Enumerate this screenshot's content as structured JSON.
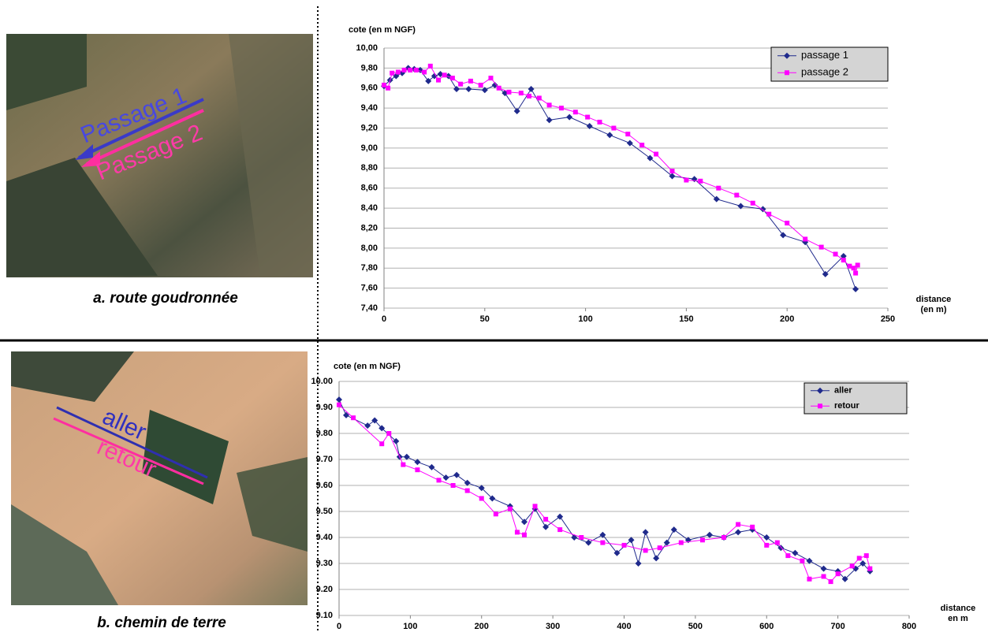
{
  "photos": [
    {
      "caption": "a. route goudronnée",
      "labels": [
        "Passage 1",
        "Passage 2"
      ]
    },
    {
      "caption": "b. chemin de terre",
      "labels": [
        "aller",
        "retour"
      ]
    }
  ],
  "chart_data": [
    {
      "type": "line",
      "y_label": "cote (en m NGF)",
      "x_label": [
        "distance",
        "(en m)"
      ],
      "xlim": [
        0,
        250
      ],
      "xticks": [
        0,
        50,
        100,
        150,
        200,
        250
      ],
      "ylim": [
        7.4,
        10
      ],
      "yticks": [
        {
          "value": 7.4,
          "label": "7,40"
        },
        {
          "value": 7.6,
          "label": "7,60"
        },
        {
          "value": 7.8,
          "label": "7,80"
        },
        {
          "value": 8,
          "label": "8,00"
        },
        {
          "value": 8.2,
          "label": "8,20"
        },
        {
          "value": 8.4,
          "label": "8,40"
        },
        {
          "value": 8.6,
          "label": "8,60"
        },
        {
          "value": 8.8,
          "label": "8,80"
        },
        {
          "value": 9,
          "label": "9,00"
        },
        {
          "value": 9.2,
          "label": "9,20"
        },
        {
          "value": 9.4,
          "label": "9,40"
        },
        {
          "value": 9.6,
          "label": "9,60"
        },
        {
          "value": 9.8,
          "label": "9,80"
        },
        {
          "value": 10,
          "label": "10,00"
        }
      ],
      "grid": true,
      "legend": "top-right",
      "series": [
        {
          "name": "passage 1",
          "color": "#1f2a8c",
          "marker": "diamond",
          "x": [
            0,
            3,
            6,
            9,
            12,
            15,
            18,
            22,
            25,
            28,
            32,
            36,
            42,
            50,
            55,
            60,
            66,
            73,
            82,
            92,
            102,
            112,
            122,
            132,
            143,
            154,
            165,
            177,
            188,
            198,
            209,
            219,
            228,
            234
          ],
          "values": [
            9.62,
            9.68,
            9.72,
            9.75,
            9.8,
            9.79,
            9.78,
            9.67,
            9.72,
            9.74,
            9.72,
            9.59,
            9.59,
            9.58,
            9.63,
            9.55,
            9.37,
            9.59,
            9.28,
            9.31,
            9.22,
            9.13,
            9.05,
            8.9,
            8.72,
            8.69,
            8.49,
            8.42,
            8.39,
            8.13,
            8.06,
            7.74,
            7.92,
            7.59
          ]
        },
        {
          "name": "passage 2",
          "color": "#ff00ff",
          "marker": "square",
          "x": [
            0,
            2,
            4,
            7,
            10,
            13,
            16,
            20,
            23,
            27,
            30,
            34,
            38,
            43,
            48,
            53,
            57,
            62,
            68,
            72,
            77,
            82,
            88,
            95,
            101,
            107,
            114,
            121,
            128,
            135,
            143,
            150,
            157,
            166,
            175,
            183,
            191,
            200,
            209,
            217,
            224,
            228,
            231,
            233,
            234,
            235
          ],
          "values": [
            9.63,
            9.6,
            9.75,
            9.76,
            9.78,
            9.78,
            9.78,
            9.76,
            9.82,
            9.68,
            9.73,
            9.7,
            9.64,
            9.67,
            9.63,
            9.7,
            9.6,
            9.56,
            9.55,
            9.52,
            9.5,
            9.43,
            9.4,
            9.36,
            9.31,
            9.26,
            9.2,
            9.14,
            9.03,
            8.94,
            8.77,
            8.68,
            8.67,
            8.6,
            8.53,
            8.45,
            8.34,
            8.25,
            8.09,
            8.01,
            7.94,
            7.88,
            7.82,
            7.8,
            7.75,
            7.83
          ]
        }
      ]
    },
    {
      "type": "line",
      "y_label": "cote (en m NGF)",
      "x_label": [
        "distance",
        "en m"
      ],
      "xlim": [
        0,
        800
      ],
      "xticks": [
        0,
        100,
        200,
        300,
        400,
        500,
        600,
        700,
        800
      ],
      "ylim": [
        9.1,
        10
      ],
      "yticks": [
        {
          "value": 9.1,
          "label": "9.10"
        },
        {
          "value": 9.2,
          "label": "9.20"
        },
        {
          "value": 9.3,
          "label": "9.30"
        },
        {
          "value": 9.4,
          "label": "9.40"
        },
        {
          "value": 9.5,
          "label": "9.50"
        },
        {
          "value": 9.6,
          "label": "9.60"
        },
        {
          "value": 9.7,
          "label": "9.70"
        },
        {
          "value": 9.8,
          "label": "9.80"
        },
        {
          "value": 9.9,
          "label": "9.90"
        },
        {
          "value": 10,
          "label": "10.00"
        }
      ],
      "grid": true,
      "legend": "top-right",
      "series": [
        {
          "name": "aller",
          "color": "#1f2a8c",
          "marker": "diamond",
          "x": [
            0,
            10,
            40,
            50,
            60,
            80,
            85,
            95,
            110,
            130,
            150,
            165,
            180,
            200,
            215,
            240,
            260,
            275,
            290,
            310,
            330,
            350,
            370,
            390,
            410,
            420,
            430,
            445,
            460,
            470,
            490,
            520,
            540,
            560,
            580,
            600,
            620,
            640,
            660,
            680,
            700,
            710,
            725,
            735,
            745
          ],
          "values": [
            9.93,
            9.87,
            9.83,
            9.85,
            9.82,
            9.77,
            9.71,
            9.71,
            9.69,
            9.67,
            9.63,
            9.64,
            9.61,
            9.59,
            9.55,
            9.52,
            9.46,
            9.51,
            9.44,
            9.48,
            9.4,
            9.38,
            9.41,
            9.34,
            9.39,
            9.3,
            9.42,
            9.32,
            9.38,
            9.43,
            9.39,
            9.41,
            9.4,
            9.42,
            9.43,
            9.4,
            9.36,
            9.34,
            9.31,
            9.28,
            9.27,
            9.24,
            9.28,
            9.3,
            9.27
          ]
        },
        {
          "name": "retour",
          "color": "#ff00ff",
          "marker": "square",
          "x": [
            0,
            20,
            60,
            70,
            90,
            110,
            140,
            160,
            180,
            200,
            220,
            240,
            250,
            260,
            275,
            290,
            310,
            340,
            370,
            400,
            430,
            450,
            480,
            510,
            540,
            560,
            580,
            600,
            615,
            630,
            650,
            660,
            680,
            690,
            700,
            720,
            730,
            740,
            745
          ],
          "values": [
            9.91,
            9.86,
            9.76,
            9.8,
            9.68,
            9.66,
            9.62,
            9.6,
            9.58,
            9.55,
            9.49,
            9.51,
            9.42,
            9.41,
            9.52,
            9.47,
            9.43,
            9.4,
            9.38,
            9.37,
            9.35,
            9.36,
            9.38,
            9.39,
            9.4,
            9.45,
            9.44,
            9.37,
            9.38,
            9.33,
            9.31,
            9.24,
            9.25,
            9.23,
            9.26,
            9.29,
            9.32,
            9.33,
            9.28
          ]
        }
      ]
    }
  ]
}
